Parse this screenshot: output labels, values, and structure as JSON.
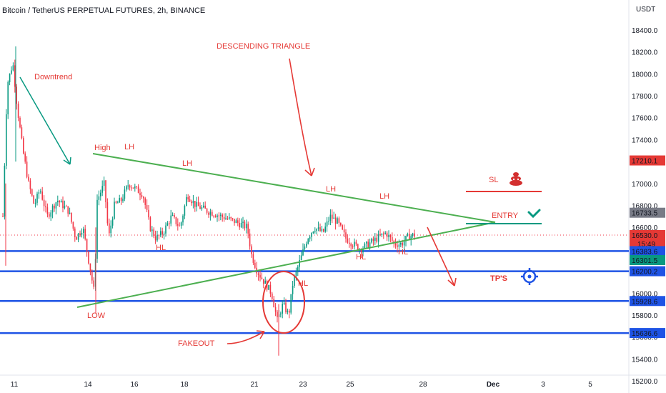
{
  "header": {
    "title": "Bitcoin / TetherUS PERPETUAL FUTURES, 2h, BINANCE",
    "currency": "USDT"
  },
  "chart_data": {
    "type": "candlestick",
    "y_axis": {
      "min": 15200,
      "max": 18400,
      "ticks": [
        15200,
        15400,
        15600,
        15800,
        16000,
        16200,
        16400,
        16600,
        16800,
        17000,
        17200,
        17400,
        17600,
        17800,
        18000,
        18200,
        18400
      ],
      "tick_labels": [
        "15200.0",
        "15400.0",
        "15600.0",
        "15800.0",
        "16000.0",
        "16200.0",
        "16400.0",
        "16600.0",
        "16800.0",
        "17000.0",
        "17200.0",
        "17400.0",
        "17600.0",
        "17800.0",
        "18000.0",
        "18200.0",
        "18400.0"
      ]
    },
    "x_axis": {
      "tick_labels": [
        "11",
        "14",
        "16",
        "18",
        "21",
        "23",
        "25",
        "28",
        "Dec",
        "3",
        "5"
      ]
    },
    "price_tags": [
      {
        "label": "17210.1",
        "value": 17210.1,
        "color": "#e53935"
      },
      {
        "label": "16733.5",
        "value": 16733.5,
        "color": "#787b86"
      },
      {
        "label": "16530.0",
        "value": 16530.0,
        "color": "#e53935",
        "sub": "15:49"
      },
      {
        "label": "16383.6",
        "value": 16383.6,
        "color": "#1e53e5"
      },
      {
        "label": "16301.5",
        "value": 16301.5,
        "color": "#089981"
      },
      {
        "label": "16200.2",
        "value": 16200.2,
        "color": "#1e53e5"
      },
      {
        "label": "15928.6",
        "value": 15928.6,
        "color": "#1e53e5"
      },
      {
        "label": "15636.6",
        "value": 15636.6,
        "color": "#1e53e5"
      }
    ],
    "horizontal_levels": [
      16383.6,
      16200.2,
      15928.6,
      15636.6
    ],
    "current_price": 16530.0,
    "annotations": {
      "downtrend": "Downtrend",
      "descending_triangle": "DESCENDING TRIANGLE",
      "high": "High",
      "lh": "LH",
      "hl": "HL",
      "low": "LOW",
      "fakeout": "FAKEOUT",
      "sl": "SL",
      "entry": "ENTRY",
      "tps": "TP'S"
    },
    "colors": {
      "up": "#089981",
      "down": "#f23645",
      "level": "#1e53e5",
      "triangle": "#4caf50",
      "annotation": "#e53935",
      "downtrend_text": "#089981"
    }
  }
}
